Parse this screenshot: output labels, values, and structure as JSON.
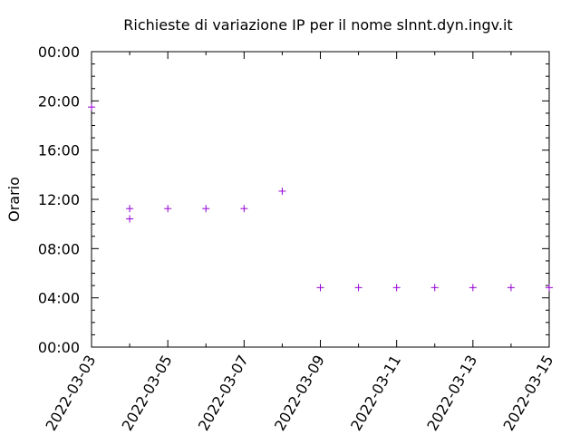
{
  "chart_data": {
    "type": "scatter",
    "title": "Richieste di variazione IP per il nome slnnt.dyn.ingv.it",
    "xlabel": "",
    "ylabel": "Orario",
    "xlim": [
      "2022-03-03",
      "2022-03-15"
    ],
    "ylim_hours": [
      0,
      24
    ],
    "x_tick_labels": [
      "2022-03-03",
      "2022-03-05",
      "2022-03-07",
      "2022-03-09",
      "2022-03-11",
      "2022-03-13",
      "2022-03-15"
    ],
    "y_tick_labels": [
      "00:00",
      "04:00",
      "08:00",
      "12:00",
      "16:00",
      "20:00",
      "00:00"
    ],
    "grid": false,
    "legend": "none",
    "marker": "plus",
    "marker_color": "#9400d3",
    "points": [
      {
        "x": "2022-03-03",
        "y": "19:30"
      },
      {
        "x": "2022-03-04",
        "y": "11:15"
      },
      {
        "x": "2022-03-04",
        "y": "10:25"
      },
      {
        "x": "2022-03-05",
        "y": "11:15"
      },
      {
        "x": "2022-03-06",
        "y": "11:15"
      },
      {
        "x": "2022-03-07",
        "y": "11:15"
      },
      {
        "x": "2022-03-08",
        "y": "12:40"
      },
      {
        "x": "2022-03-09",
        "y": "04:50"
      },
      {
        "x": "2022-03-10",
        "y": "04:50"
      },
      {
        "x": "2022-03-11",
        "y": "04:50"
      },
      {
        "x": "2022-03-12",
        "y": "04:50"
      },
      {
        "x": "2022-03-13",
        "y": "04:50"
      },
      {
        "x": "2022-03-14",
        "y": "04:50"
      },
      {
        "x": "2022-03-15",
        "y": "04:50"
      }
    ]
  }
}
